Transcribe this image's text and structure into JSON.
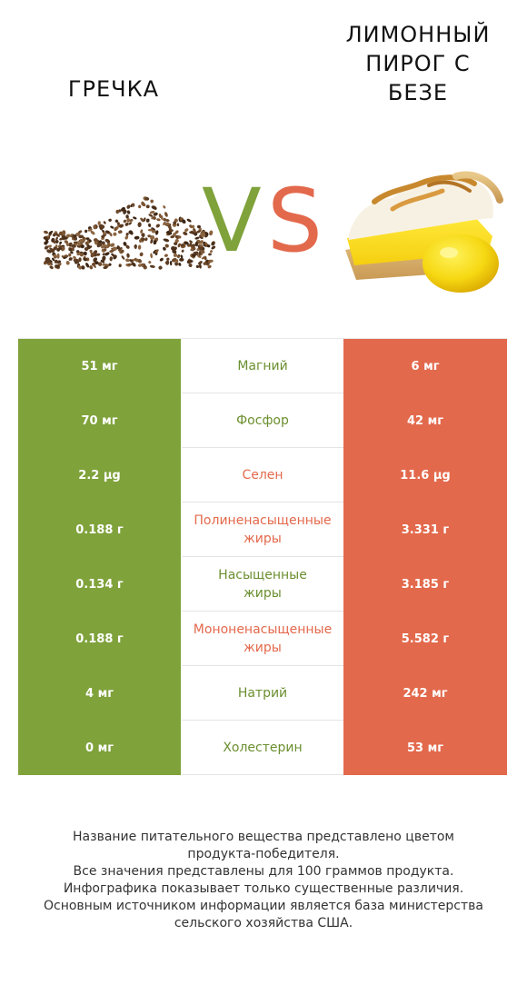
{
  "header": {
    "left_title": "ГРЕЧКА",
    "right_title_lines": [
      "ЛИМОННЫЙ",
      "ПИРОГ С",
      "БЕЗЕ"
    ],
    "vs_v": "V",
    "vs_s": "S"
  },
  "colors": {
    "left": "#7fa23b",
    "right": "#e3694c",
    "neutral_text": "#6b8f2f"
  },
  "rows": [
    {
      "left": "51 мг",
      "nutrient": [
        "Магний"
      ],
      "right": "6 мг",
      "winner": "left"
    },
    {
      "left": "70 мг",
      "nutrient": [
        "Фосфор"
      ],
      "right": "42 мг",
      "winner": "left"
    },
    {
      "left": "2.2 µg",
      "nutrient": [
        "Селен"
      ],
      "right": "11.6 µg",
      "winner": "right"
    },
    {
      "left": "0.188 г",
      "nutrient": [
        "Полиненасыщенные",
        "жиры"
      ],
      "right": "3.331 г",
      "winner": "right"
    },
    {
      "left": "0.134 г",
      "nutrient": [
        "Насыщенные",
        "жиры"
      ],
      "right": "3.185 г",
      "winner": "left"
    },
    {
      "left": "0.188 г",
      "nutrient": [
        "Мононенасыщенные",
        "жиры"
      ],
      "right": "5.582 г",
      "winner": "right"
    },
    {
      "left": "4 мг",
      "nutrient": [
        "Натрий"
      ],
      "right": "242 мг",
      "winner": "left"
    },
    {
      "left": "0 мг",
      "nutrient": [
        "Холестерин"
      ],
      "right": "53 мг",
      "winner": "left"
    }
  ],
  "footer": {
    "lines": [
      "Название питательного вещества представлено цветом",
      "продукта-победителя.",
      "Все значения представлены для 100 граммов продукта.",
      "Инфографика показывает только существенные различия.",
      "Основным источником информации является база министерства",
      "сельского хозяйства США."
    ]
  }
}
